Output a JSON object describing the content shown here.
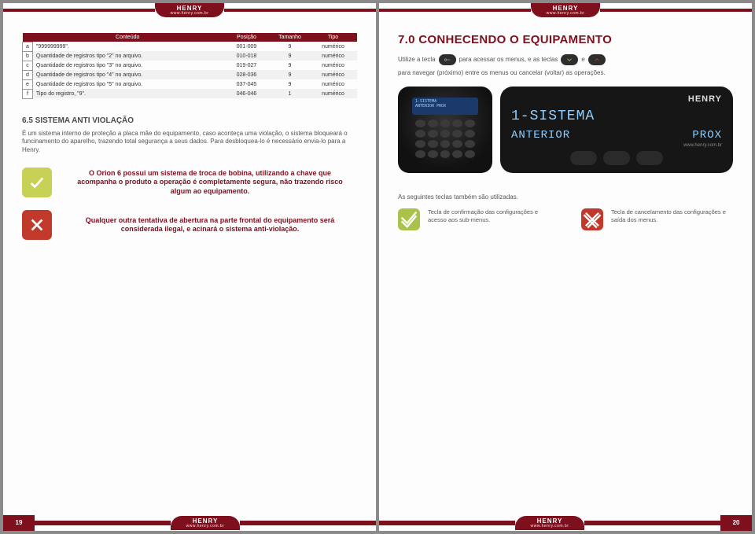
{
  "brand": {
    "name": "HENRY",
    "url": "www.henry.com.br"
  },
  "left": {
    "pageNumber": "19",
    "table": {
      "headers": [
        "Conteúdo",
        "Posição",
        "Tamanho",
        "Tipo"
      ],
      "rows": [
        {
          "id": "a",
          "c": "\"999999999\".",
          "p": "001-009",
          "t": "9",
          "ty": "numérico"
        },
        {
          "id": "b",
          "c": "Quantidade de registros tipo \"2\" no arquivo.",
          "p": "010-018",
          "t": "9",
          "ty": "numérico"
        },
        {
          "id": "c",
          "c": "Quantidade de registros tipo \"3\" no arquivo.",
          "p": "019-027",
          "t": "9",
          "ty": "numérico"
        },
        {
          "id": "d",
          "c": "Quantidade de registros tipo \"4\" no arquivo.",
          "p": "028-036",
          "t": "9",
          "ty": "numérico"
        },
        {
          "id": "e",
          "c": "Quantidade de registros tipo \"5\" no arquivo.",
          "p": "037-045",
          "t": "9",
          "ty": "numérico"
        },
        {
          "id": "f",
          "c": "Tipo do registro, \"9\".",
          "p": "046-046",
          "t": "1",
          "ty": "numérico"
        }
      ]
    },
    "section": {
      "heading": "6.5 SISTEMA ANTI VIOLAÇÃO",
      "body": "É um sistema interno de proteção a placa mãe do equipamento, caso aconteça uma violação, o sistema bloqueará o funcinamento do aparelho, trazendo total segurança a seus dados. Para desbloquea-lo é necessário envia-lo para a Henry.",
      "ok": "O Orion 6 possui um sistema de troca de bobina, utilizando a chave que acompanha o produto a operação é completamente segura, não trazendo risco algum ao equipamento.",
      "bad": "Qualquer outra tentativa de abertura na parte frontal do equipamento será considerada ilegal, e acinará o sistema anti-violação."
    }
  },
  "right": {
    "pageNumber": "20",
    "title": "7.0 CONHECENDO O EQUIPAMENTO",
    "intro1": "Utilize a tecla",
    "intro2": "para acessar os menus, e as teclas",
    "intro3": "e",
    "intro4": "para navegar (próximo) entre os menus ou cancelar (voltar) as operações.",
    "lcd": {
      "line1": "1-SISTEMA",
      "line2": "ANTERIOR",
      "right": "PROX",
      "small1": "1-SISTEMA",
      "small2": "ANTERIOR    PROX"
    },
    "keysInfo": "As seguintes teclas também são utilizadas.",
    "confirm": "Tecla de confirmação das configurações e acesso aos sub-menus.",
    "cancel": "Tecla de cancelamento das configurações e saída dos menus."
  }
}
